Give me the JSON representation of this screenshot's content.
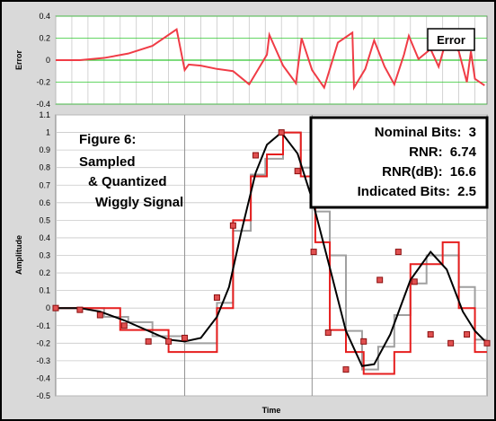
{
  "chart_data": [
    {
      "type": "line",
      "ylabel": "Error",
      "xlabel": "",
      "legend_label": "Error",
      "ylim": [
        -0.4,
        0.4
      ],
      "y_ticks": [
        "0.4",
        "0.2",
        "0",
        "-0.2",
        "-0.4"
      ],
      "grid": true,
      "colors": {
        "error": "#f03c46",
        "zero_line": "#32c832",
        "grid": "#c8c8c8"
      },
      "series": [
        {
          "x": [
            0,
            30,
            60,
            90,
            120,
            150,
            160,
            165,
            180,
            200,
            220,
            240,
            262,
            265,
            282,
            298,
            305,
            318,
            333,
            350,
            368,
            370,
            384,
            395,
            408,
            420,
            432,
            438,
            450,
            465,
            475,
            482,
            488,
            500,
            510,
            515,
            520,
            532
          ],
          "y": [
            0,
            0,
            0.02,
            0.06,
            0.13,
            0.28,
            -0.09,
            -0.04,
            -0.05,
            -0.08,
            -0.1,
            -0.22,
            0.05,
            0.23,
            -0.05,
            -0.21,
            0.2,
            -0.09,
            -0.25,
            0.16,
            0.25,
            -0.25,
            -0.08,
            0.18,
            -0.06,
            -0.22,
            0.05,
            0.22,
            0.01,
            0.1,
            -0.06,
            0.12,
            0.23,
            0.08,
            -0.2,
            0.08,
            -0.17,
            -0.23
          ]
        }
      ]
    },
    {
      "type": "line",
      "title": "Figure 6:\nSampled\n& Quantized\nWiggly Signal",
      "xlabel": "Time",
      "ylabel": "Amplitude",
      "ylim": [
        -0.5,
        1.1
      ],
      "y_ticks": [
        "1.1",
        "1",
        "0.9",
        "0.8",
        "0.7",
        "0.6",
        "0.5",
        "0.4",
        "0.3",
        "0.2",
        "0.1",
        "0",
        "-0.1",
        "-0.2",
        "-0.3",
        "-0.4",
        "-0.5"
      ],
      "grid": true,
      "stats": [
        {
          "label": "Nominal Bits:",
          "value": "3"
        },
        {
          "label": "RNR:",
          "value": "6.74"
        },
        {
          "label": "RNR(dB):",
          "value": "16.6"
        },
        {
          "label": "Indicated Bits:",
          "value": "2.5"
        }
      ],
      "colors": {
        "signal": "#000000",
        "quantized": "#e61e1e",
        "sampled": "#a0a0a0",
        "marker": "#c01818",
        "grid": "#c8c8c8"
      },
      "series": [
        {
          "kind": "signal",
          "x": [
            0,
            30,
            55,
            85,
            115,
            140,
            160,
            180,
            200,
            215,
            230,
            248,
            262,
            280,
            300,
            318,
            340,
            360,
            380,
            395,
            415,
            440,
            465,
            485,
            505,
            520,
            535
          ],
          "y": [
            0,
            0,
            -0.02,
            -0.07,
            -0.13,
            -0.18,
            -0.19,
            -0.17,
            -0.05,
            0.12,
            0.43,
            0.77,
            0.93,
            1.0,
            0.88,
            0.62,
            0.23,
            -0.13,
            -0.33,
            -0.32,
            -0.15,
            0.16,
            0.32,
            0.22,
            -0.02,
            -0.13,
            -0.2
          ]
        },
        {
          "kind": "quantized",
          "x": [
            0,
            80,
            80,
            140,
            140,
            200,
            200,
            220,
            220,
            242,
            242,
            262,
            262,
            282,
            282,
            304,
            304,
            322,
            322,
            340,
            340,
            360,
            360,
            382,
            382,
            420,
            420,
            440,
            440,
            480,
            480,
            500,
            500,
            520,
            520,
            535
          ],
          "y": [
            0,
            0,
            -0.125,
            -0.125,
            -0.25,
            -0.25,
            0,
            0,
            0.5,
            0.5,
            0.75,
            0.75,
            0.875,
            0.875,
            1.0,
            1.0,
            0.75,
            0.75,
            0.375,
            0.375,
            -0.125,
            -0.125,
            -0.25,
            -0.25,
            -0.375,
            -0.375,
            -0.25,
            -0.25,
            0.25,
            0.25,
            0.375,
            0.375,
            0,
            0,
            -0.25,
            -0.25
          ]
        },
        {
          "kind": "sampled",
          "x": [
            0,
            60,
            60,
            90,
            90,
            120,
            120,
            160,
            160,
            200,
            200,
            220,
            220,
            242,
            242,
            260,
            260,
            282,
            282,
            304,
            304,
            322,
            322,
            340,
            340,
            360,
            360,
            380,
            380,
            400,
            400,
            420,
            420,
            440,
            440,
            460,
            460,
            480,
            480,
            500,
            500,
            520,
            520,
            535
          ],
          "y": [
            0,
            0,
            -0.05,
            -0.05,
            -0.08,
            -0.08,
            -0.16,
            -0.16,
            -0.2,
            -0.2,
            0.03,
            0.03,
            0.44,
            0.44,
            0.76,
            0.76,
            0.85,
            0.85,
            1.0,
            1.0,
            0.8,
            0.8,
            0.55,
            0.55,
            0.3,
            0.3,
            -0.13,
            -0.13,
            -0.35,
            -0.35,
            -0.22,
            -0.22,
            -0.04,
            -0.04,
            0.14,
            0.14,
            0.3,
            0.3,
            0.3,
            0.3,
            0.12,
            0.12,
            -0.18,
            -0.18
          ]
        },
        {
          "kind": "samples",
          "x": [
            0,
            30,
            55,
            85,
            115,
            140,
            160,
            200,
            220,
            248,
            280,
            300,
            320,
            338,
            360,
            382,
            402,
            425,
            445,
            465,
            490,
            510,
            535
          ],
          "y": [
            0,
            -0.01,
            -0.04,
            -0.1,
            -0.19,
            -0.19,
            -0.17,
            0.06,
            0.47,
            0.87,
            1.0,
            0.78,
            0.32,
            -0.14,
            -0.35,
            -0.19,
            0.16,
            0.32,
            0.15,
            -0.15,
            -0.2,
            -0.15,
            -0.2
          ]
        }
      ]
    }
  ]
}
